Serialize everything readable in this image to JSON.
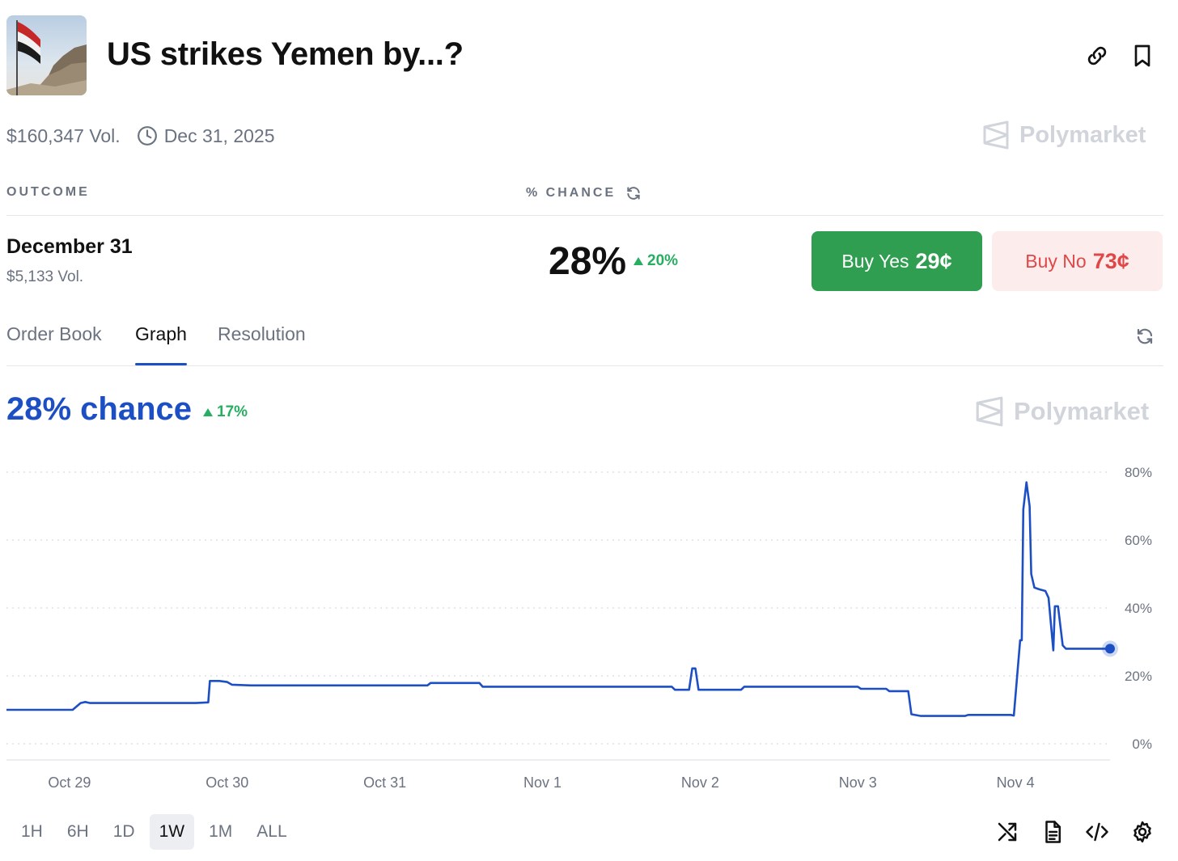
{
  "market": {
    "title": "US strikes Yemen by...?",
    "image_icon": "yemen-flag-photo",
    "volume": "$160,347 Vol.",
    "end_date": "Dec 31, 2025",
    "brand": "Polymarket"
  },
  "header_actions": {
    "link_icon": "link-icon",
    "bookmark_icon": "bookmark-icon"
  },
  "table_header": {
    "outcome": "OUTCOME",
    "chance": "% CHANCE"
  },
  "outcome": {
    "name": "December 31",
    "volume": "$5,133 Vol.",
    "chance": "28%",
    "delta": "20%",
    "buy_yes_label": "Buy Yes",
    "buy_yes_price": "29¢",
    "buy_no_label": "Buy No",
    "buy_no_price": "73¢"
  },
  "tabs": [
    {
      "label": "Order Book",
      "active": false
    },
    {
      "label": "Graph",
      "active": true
    },
    {
      "label": "Resolution",
      "active": false
    }
  ],
  "graph": {
    "chance_text": "28% chance",
    "delta": "17%",
    "brand": "Polymarket"
  },
  "chart_data": {
    "type": "line",
    "title": "",
    "xlabel": "",
    "ylabel": "",
    "ylim": [
      0,
      80
    ],
    "y_ticks": [
      "80%",
      "60%",
      "40%",
      "20%",
      "0%"
    ],
    "y_tick_values": [
      80,
      60,
      40,
      20,
      0
    ],
    "x_ticks": [
      "Oct 29",
      "Oct 30",
      "Oct 31",
      "Nov 1",
      "Nov 2",
      "Nov 3",
      "Nov 4"
    ],
    "x_tick_days": [
      1,
      2,
      3,
      4,
      5,
      6,
      7
    ],
    "x_range_days": [
      0.6,
      7.6
    ],
    "grid": true,
    "grid_style": "dotted-horizontal",
    "line_color": "#1d4fc4",
    "series": [
      {
        "points": [
          [
            0.6,
            10
          ],
          [
            1.02,
            10
          ],
          [
            1.07,
            12
          ],
          [
            1.1,
            12.3
          ],
          [
            1.13,
            12
          ],
          [
            1.8,
            12
          ],
          [
            1.88,
            12.2
          ],
          [
            1.89,
            18.5
          ],
          [
            1.95,
            18.5
          ],
          [
            2.0,
            18.2
          ],
          [
            2.03,
            17.4
          ],
          [
            2.15,
            17.2
          ],
          [
            3.27,
            17.2
          ],
          [
            3.29,
            17.9
          ],
          [
            3.6,
            17.9
          ],
          [
            3.62,
            16.8
          ],
          [
            4.82,
            16.8
          ],
          [
            4.84,
            15.9
          ],
          [
            4.93,
            15.9
          ],
          [
            4.95,
            22.2
          ],
          [
            4.97,
            22.2
          ],
          [
            4.99,
            15.9
          ],
          [
            5.26,
            15.9
          ],
          [
            5.28,
            16.8
          ],
          [
            6.0,
            16.8
          ],
          [
            6.02,
            16.2
          ],
          [
            6.18,
            16.2
          ],
          [
            6.2,
            15.5
          ],
          [
            6.32,
            15.5
          ],
          [
            6.34,
            8.7
          ],
          [
            6.4,
            8.2
          ],
          [
            6.68,
            8.2
          ],
          [
            6.7,
            8.5
          ],
          [
            6.97,
            8.5
          ],
          [
            6.99,
            8.3
          ],
          [
            7.03,
            30.5
          ],
          [
            7.04,
            30.5
          ],
          [
            7.05,
            69
          ],
          [
            7.07,
            77
          ],
          [
            7.09,
            70
          ],
          [
            7.1,
            50
          ],
          [
            7.12,
            46
          ],
          [
            7.15,
            45.5
          ],
          [
            7.19,
            45
          ],
          [
            7.21,
            43
          ],
          [
            7.24,
            27.5
          ],
          [
            7.25,
            40.5
          ],
          [
            7.27,
            40.5
          ],
          [
            7.3,
            29
          ],
          [
            7.32,
            28
          ],
          [
            7.6,
            28
          ]
        ]
      }
    ],
    "current_point": [
      7.6,
      28
    ]
  },
  "time_ranges": [
    {
      "label": "1H",
      "active": false
    },
    {
      "label": "6H",
      "active": false
    },
    {
      "label": "1D",
      "active": false
    },
    {
      "label": "1W",
      "active": true
    },
    {
      "label": "1M",
      "active": false
    },
    {
      "label": "ALL",
      "active": false
    }
  ],
  "tools": [
    "shuffle-icon",
    "document-icon",
    "code-icon",
    "settings-icon"
  ]
}
